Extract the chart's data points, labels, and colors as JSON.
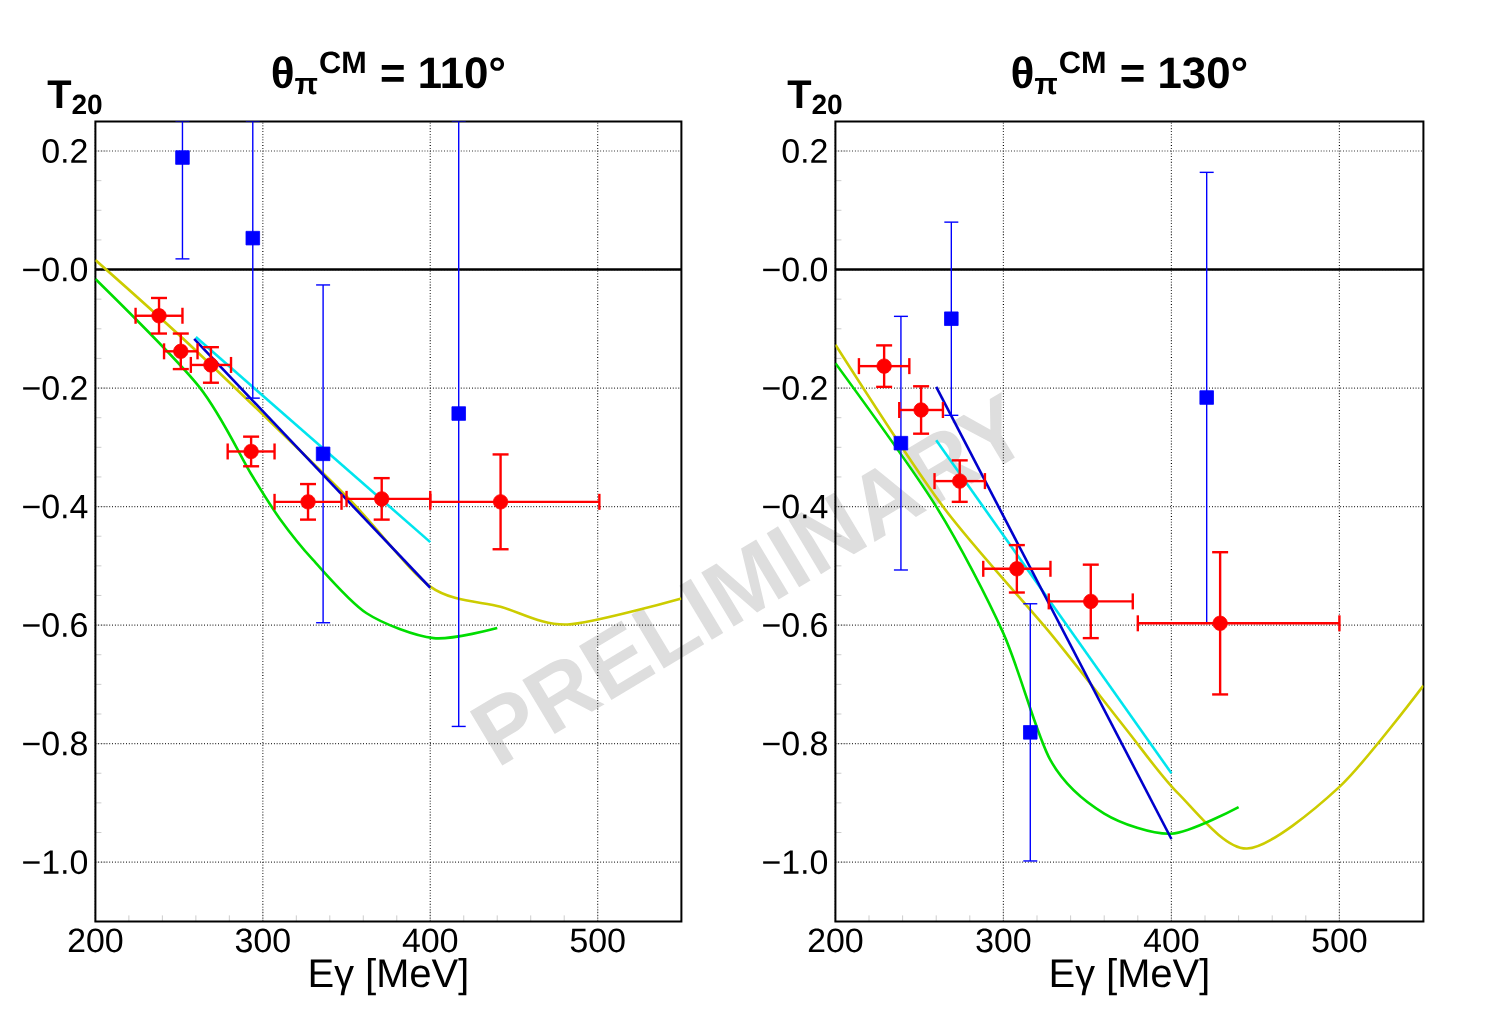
{
  "chart_data": [
    {
      "type": "line",
      "title": "θ$_{π}$$^{CM}$ = 110°",
      "xlabel": "Eγ   [MeV]",
      "ylabel": "T$_{20}$",
      "xlim": [
        200,
        550
      ],
      "ylim": [
        -1.1,
        0.25
      ],
      "xticks": [
        200,
        300,
        400,
        500
      ],
      "yticks": [
        {
          "value": 0.2,
          "label": "0.2"
        },
        {
          "value": 0,
          "label": "−0.0"
        },
        {
          "value": -0.2,
          "label": "−0.2"
        },
        {
          "value": -0.4,
          "label": "−0.4"
        },
        {
          "value": -0.6,
          "label": "−0.6"
        },
        {
          "value": -0.8,
          "label": "−0.8"
        },
        {
          "value": -1.0,
          "label": "−1.0"
        }
      ],
      "grid": true,
      "ref_lines": [
        {
          "axis": "y",
          "value": 0,
          "color": "#000000"
        }
      ],
      "annotations": [
        "PRELIMINARY"
      ],
      "series": [
        {
          "color": "#cccc00",
          "x": [
            200,
            262,
            350,
            400,
            442,
            482,
            550
          ],
          "values": [
            0.016,
            -0.142,
            -0.383,
            -0.535,
            -0.569,
            -0.599,
            -0.555
          ]
        },
        {
          "color": "#00dd00",
          "x": [
            200,
            262,
            293,
            310,
            330,
            362,
            402,
            440
          ],
          "values": [
            -0.016,
            -0.198,
            -0.345,
            -0.42,
            -0.49,
            -0.58,
            -0.622,
            -0.605
          ]
        },
        {
          "color": "#00e5ee",
          "x": [
            260,
            400
          ],
          "values": [
            -0.114,
            -0.46
          ]
        },
        {
          "color": "#0000cc",
          "x": [
            259,
            400
          ],
          "values": [
            -0.117,
            -0.537
          ]
        },
        {
          "type": "scatter",
          "marker": "square",
          "color": "#0000ff",
          "x": [
            252,
            294,
            336,
            417
          ],
          "values": [
            0.189,
            0.053,
            -0.311,
            -0.243
          ],
          "errors": [
            [
              0.018,
              0.25
            ],
            [
              -0.217,
              0.25
            ],
            0.285,
            [
              -0.771,
              0.25
            ]
          ]
        },
        {
          "type": "scatter",
          "marker": "circle",
          "color": "#ff0000",
          "x": [
            238,
            251,
            269,
            293,
            327,
            371,
            442
          ],
          "values": [
            -0.078,
            -0.138,
            -0.161,
            -0.307,
            -0.392,
            -0.387,
            -0.392
          ],
          "errors": [
            0.03,
            0.03,
            0.03,
            0.025,
            0.03,
            0.035,
            0.08
          ],
          "xerrors": [
            14,
            10,
            12,
            14,
            20,
            [
              350,
              400
            ],
            [
              400,
              501
            ]
          ]
        }
      ]
    },
    {
      "type": "line",
      "title": "θ$_{π}$$^{CM}$ = 130°",
      "xlabel": "Eγ   [MeV]",
      "ylabel": "T$_{20}$",
      "xlim": [
        200,
        550
      ],
      "ylim": [
        -1.1,
        0.25
      ],
      "xticks": [
        200,
        300,
        400,
        500
      ],
      "yticks": [
        {
          "value": 0.2,
          "label": "0.2"
        },
        {
          "value": 0,
          "label": "−0.0"
        },
        {
          "value": -0.2,
          "label": "−0.2"
        },
        {
          "value": -0.4,
          "label": "−0.4"
        },
        {
          "value": -0.6,
          "label": "−0.6"
        },
        {
          "value": -0.8,
          "label": "−0.8"
        },
        {
          "value": -1.0,
          "label": "−1.0"
        }
      ],
      "grid": true,
      "ref_lines": [
        {
          "axis": "y",
          "value": 0,
          "color": "#000000"
        }
      ],
      "series": [
        {
          "color": "#cccc00",
          "x": [
            200,
            264,
            328,
            372,
            404,
            445,
            500,
            550
          ],
          "values": [
            -0.127,
            -0.4,
            -0.614,
            -0.772,
            -0.884,
            -0.977,
            -0.873,
            -0.702
          ]
        },
        {
          "color": "#00dd00",
          "x": [
            200,
            260,
            300,
            328,
            360,
            400,
            440
          ],
          "values": [
            -0.158,
            -0.4,
            -0.614,
            -0.828,
            -0.918,
            -0.952,
            -0.907
          ]
        },
        {
          "color": "#00e5ee",
          "x": [
            260,
            400
          ],
          "values": [
            -0.288,
            -0.85
          ]
        },
        {
          "color": "#0000cc",
          "x": [
            260,
            400
          ],
          "values": [
            -0.198,
            -0.961
          ]
        },
        {
          "type": "scatter",
          "marker": "square",
          "color": "#0000ff",
          "x": [
            239,
            269,
            316,
            421
          ],
          "values": [
            -0.293,
            -0.083,
            -0.781,
            -0.216
          ],
          "errors": [
            0.214,
            0.163,
            0.217,
            0.38
          ]
        },
        {
          "type": "scatter",
          "marker": "circle",
          "color": "#ff0000",
          "x": [
            229,
            251,
            274,
            308,
            352,
            429
          ],
          "values": [
            -0.163,
            -0.237,
            -0.357,
            -0.505,
            -0.56,
            -0.597
          ],
          "errors": [
            0.035,
            0.04,
            0.035,
            0.04,
            0.062,
            0.12
          ],
          "xerrors": [
            15,
            13,
            15,
            20,
            25,
            [
              380,
              500
            ]
          ]
        }
      ]
    }
  ]
}
